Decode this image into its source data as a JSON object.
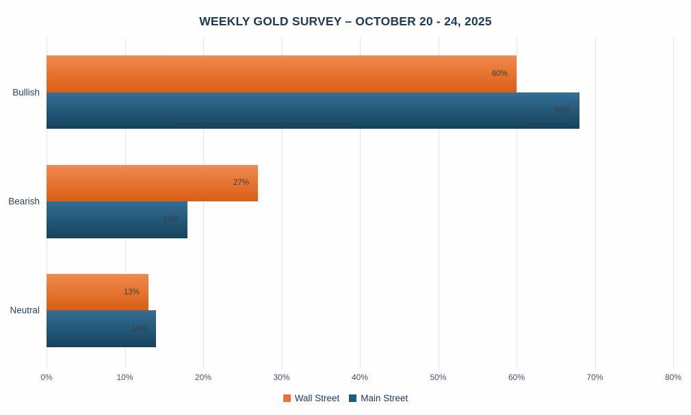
{
  "title": "WEEKLY GOLD SURVEY – OCTOBER 20 - 24, 2025",
  "chart_data": {
    "type": "bar",
    "orientation": "horizontal",
    "title": "WEEKLY GOLD SURVEY – OCTOBER 20 - 24, 2025",
    "categories": [
      "Bullish",
      "Bearish",
      "Neutral"
    ],
    "series": [
      {
        "name": "Wall Street",
        "values": [
          60,
          27,
          13
        ],
        "data_labels": [
          "60%",
          "27%",
          "13%"
        ],
        "color": "#E97132",
        "gradient_top": "#F08A4E",
        "gradient_bottom": "#DA5E15"
      },
      {
        "name": "Main Street",
        "values": [
          68,
          18,
          14
        ],
        "data_labels": [
          "68%",
          "18%",
          "14%"
        ],
        "color": "#156082",
        "gradient_top": "#346E94",
        "gradient_bottom": "#15435D"
      }
    ],
    "xlabel": "",
    "ylabel": "",
    "xlim": [
      0,
      80
    ],
    "x_tick_labels": [
      "0%",
      "10%",
      "20%",
      "30%",
      "40%",
      "50%",
      "60%",
      "70%",
      "80%"
    ],
    "x_tick_values": [
      0,
      10,
      20,
      30,
      40,
      50,
      60,
      70,
      80
    ],
    "grid": "vertical",
    "gridline_color": "#dbe5f1",
    "legend_position": "bottom",
    "title_color": "#203a5a",
    "background_color": "#fefefe"
  },
  "legend": {
    "items": [
      {
        "label": "Wall Street",
        "color": "#E97132"
      },
      {
        "label": "Main Street",
        "color": "#156082"
      }
    ]
  }
}
